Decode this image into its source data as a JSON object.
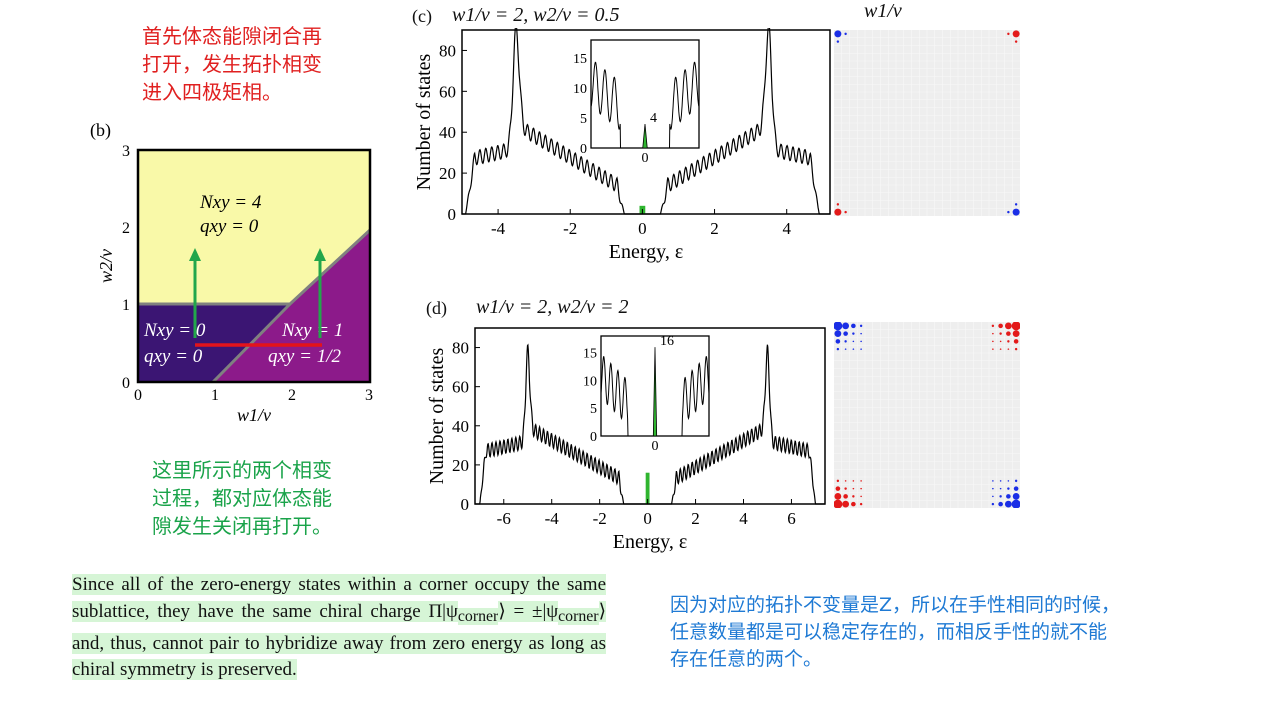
{
  "annotations": {
    "top_note": [
      "首先体态能隙闭合再",
      "打开，发生拓扑相变",
      "进入四极矩相。"
    ],
    "middle_note": [
      "这里所示的两个相变",
      "过程，都对应体态能",
      "隙发生关闭再打开。"
    ],
    "right_note": [
      "因为对应的拓扑不变量是Z，所以在手性相同的时候，",
      "任意数量都是可以稳定存在的，而相反手性的就不能",
      "存在任意的两个。"
    ]
  },
  "excerpt": {
    "text_before": "Since all of the zero-energy states within a corner occupy the same sublattice, they have the same chiral charge Π|ψ",
    "sub1": "corner",
    "text_mid": "⟩ = ±|ψ",
    "sub2": "corner",
    "text_after": "⟩ and, thus, cannot pair to hybridize away from zero energy as long as chiral symmetry is preserved."
  },
  "colors": {
    "yellow_region": "#f9f9a8",
    "indigo_region": "#3b1573",
    "magenta_region": "#8c1a8a",
    "green_arrow": "#22a64b",
    "red_line": "#e3131b",
    "blue_dot": "#1a2ee6",
    "red_dot": "#e31a1a",
    "green_peak": "#2fb52f"
  },
  "panel_b": {
    "label": "(b)",
    "xlabel": "w1/v",
    "ylabel": "w2/v",
    "xticks": [
      "0",
      "1",
      "2",
      "3"
    ],
    "yticks": [
      "0",
      "1",
      "2",
      "3"
    ],
    "region_top": {
      "line1": "Nxy = 4",
      "line2": "qxy = 0"
    },
    "region_left": {
      "line1": "Nxy = 0",
      "line2": "qxy = 0"
    },
    "region_right": {
      "line1": "Nxy = 1",
      "line2": "qxy = 1/2"
    }
  },
  "panel_c": {
    "label": "(c)",
    "title": "w1/v = 2, w2/v = 0.5",
    "side_title": "w1/v",
    "ylabel": "Number of states",
    "xlabel": "Energy, ε",
    "xticks": [
      "-4",
      "-2",
      "0",
      "2",
      "4"
    ],
    "yticks": [
      "0",
      "20",
      "40",
      "60",
      "80"
    ],
    "inset_yticks": [
      "0",
      "5",
      "10",
      "15"
    ],
    "inset_xtick": "0",
    "inset_peak_label": "4"
  },
  "panel_d": {
    "label": "(d)",
    "title": "w1/v = 2, w2/v = 2",
    "ylabel": "Number of states",
    "xlabel": "Energy, ε",
    "xticks": [
      "-6",
      "-4",
      "-2",
      "0",
      "2",
      "4",
      "6"
    ],
    "yticks": [
      "0",
      "20",
      "40",
      "60",
      "80"
    ],
    "inset_yticks": [
      "0",
      "5",
      "10",
      "15"
    ],
    "inset_xtick": "0",
    "inset_peak_label": "16"
  },
  "chart_data": [
    {
      "type": "area",
      "title": "(c) w1/v = 2, w2/v = 0.5",
      "xlabel": "Energy, ε",
      "ylabel": "Number of states",
      "xlim": [
        -5,
        5.2
      ],
      "ylim": [
        0,
        90
      ],
      "band_edges": [
        -4.9,
        4.9
      ],
      "van_hove_peaks": [
        {
          "x": -3.5,
          "y": 90
        },
        {
          "x": 3.5,
          "y": 90
        }
      ],
      "bulk_gap": [
        -0.5,
        0.5
      ],
      "zero_energy_peak": 4,
      "grid": false
    },
    {
      "type": "area",
      "title": "(d) w1/v = 2, w2/v = 2",
      "xlabel": "Energy, ε",
      "ylabel": "Number of states",
      "xlim": [
        -7.2,
        7.4
      ],
      "ylim": [
        0,
        90
      ],
      "band_edges": [
        -7,
        7
      ],
      "van_hove_peaks": [
        {
          "x": -5,
          "y": 78
        },
        {
          "x": 5,
          "y": 78
        }
      ],
      "bulk_gap": [
        -1,
        1
      ],
      "zero_energy_peak": 16,
      "grid": false
    }
  ]
}
